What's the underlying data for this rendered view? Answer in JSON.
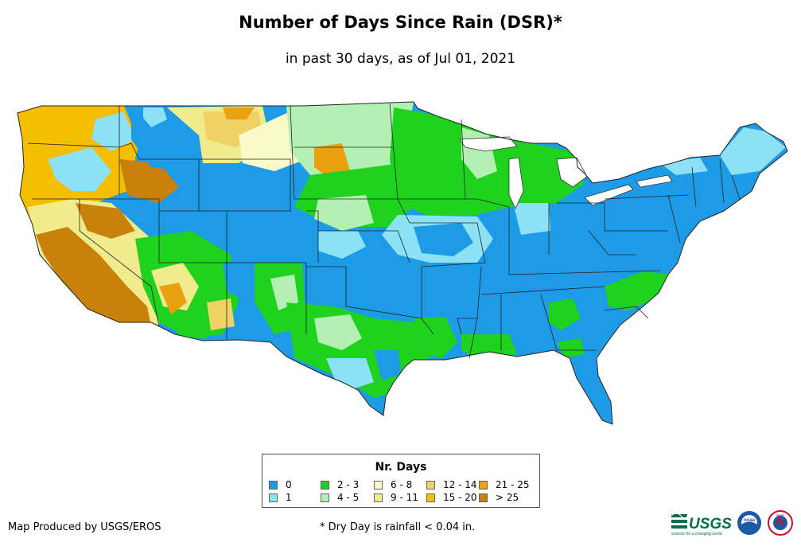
{
  "header": {
    "title": "Number of Days Since Rain (DSR)*",
    "subtitle": "in past 30 days, as of Jul 01, 2021"
  },
  "legend": {
    "title": "Nr. Days",
    "items": [
      {
        "label": "0",
        "color": "#1e9be6"
      },
      {
        "label": "1",
        "color": "#8ce1f5"
      },
      {
        "label": "2 - 3",
        "color": "#1ed21e"
      },
      {
        "label": "4 - 5",
        "color": "#b4f0b4"
      },
      {
        "label": "6 - 8",
        "color": "#fafac8"
      },
      {
        "label": "9 - 11",
        "color": "#f0eb8c"
      },
      {
        "label": "12 - 14",
        "color": "#f0d264"
      },
      {
        "label": "15 - 20",
        "color": "#f5be00"
      },
      {
        "label": "21 - 25",
        "color": "#eba00f"
      },
      {
        "label": "> 25",
        "color": "#c8820a"
      }
    ]
  },
  "footer": {
    "credit": "Map Produced by USGS/EROS",
    "footnote": "* Dry Day is rainfall < 0.04 in.",
    "logo_usgs": "USGS",
    "logo_usgs_tagline": "science for a changing world",
    "logo_noaa": "noaa",
    "logo_nws": "NWS"
  }
}
